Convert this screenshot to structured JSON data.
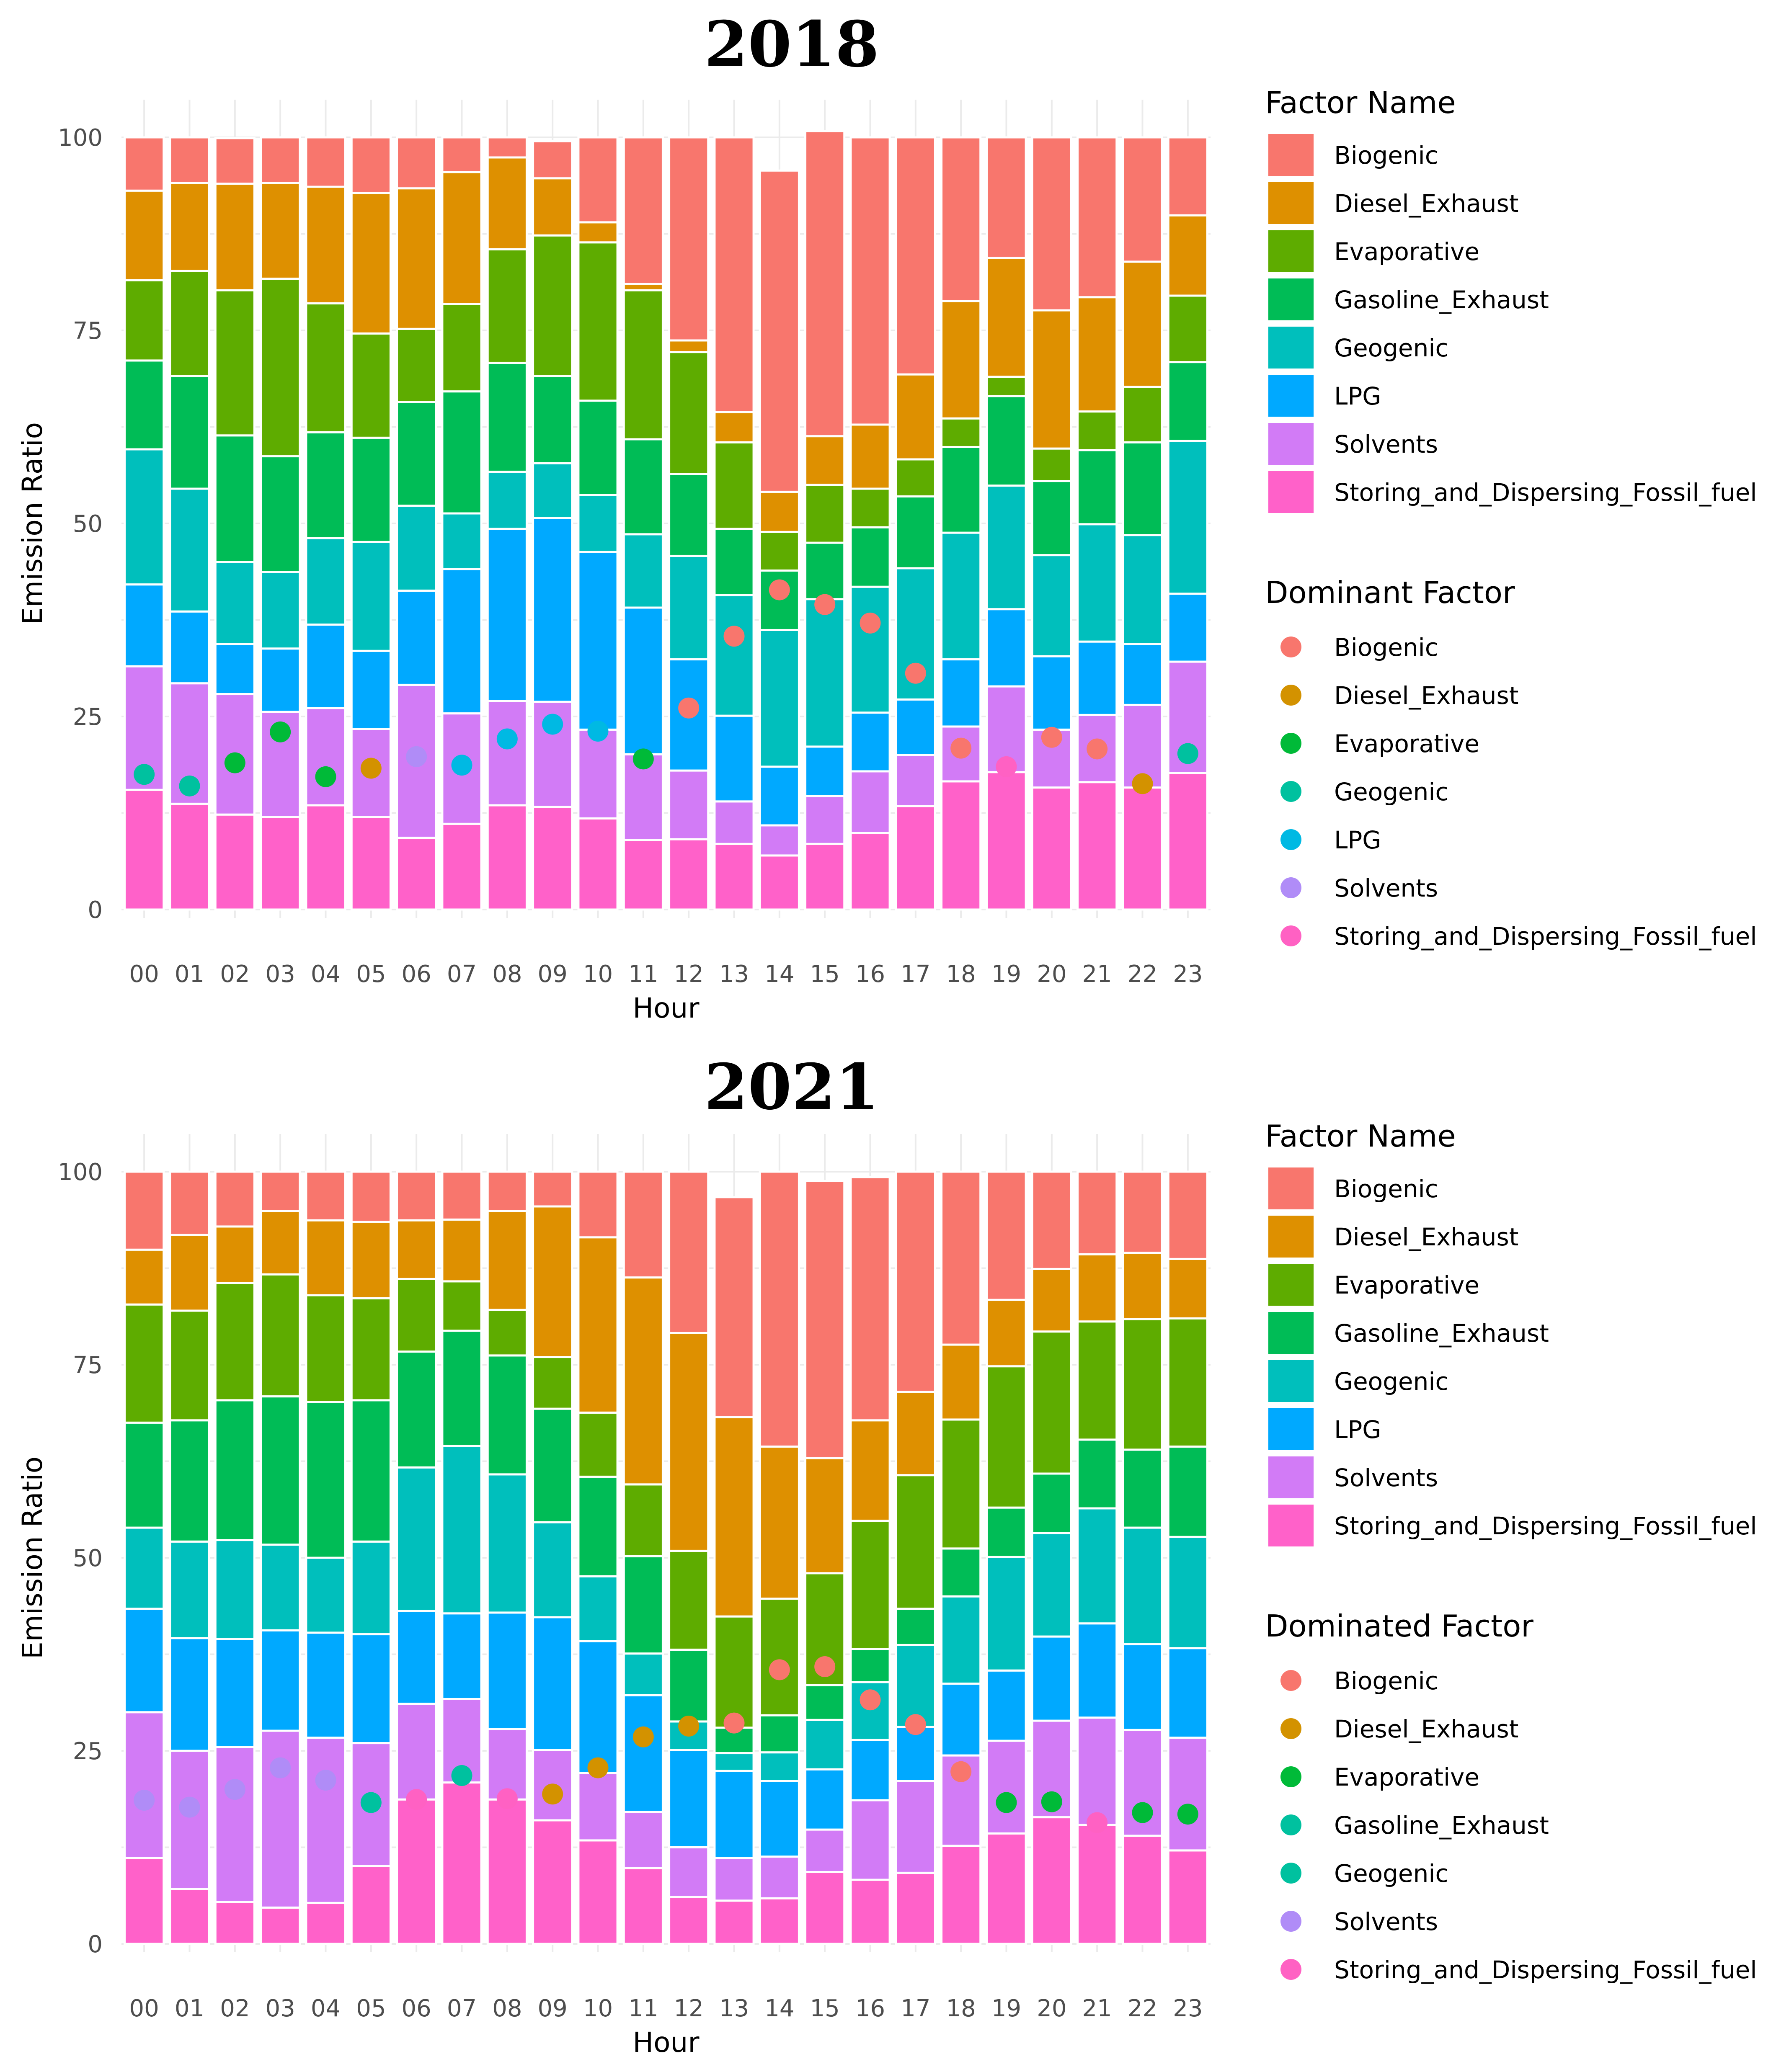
{
  "factor_colors": {
    "Biogenic": "#F8766D",
    "Diesel_Exhaust": "#DE9000",
    "Evaporative": "#5EAC00",
    "Gasoline_Exhaust": "#00BC56",
    "Geogenic": "#00BFBC",
    "LPG": "#00A9FF",
    "Solvents": "#D27BF6",
    "Storing_and_Dispersing_Fossil_fuel": "#FF61C9"
  },
  "dominant_colors": {
    "Biogenic": "#F8766D",
    "Diesel_Exhaust": "#D39200",
    "Evaporative": "#00BA38",
    "Geogenic": "#00C19F",
    "Gasoline_Exhaust": "#00C19F",
    "LPG": "#00B9E3",
    "Solvents": "#B08CF7",
    "Storing_and_Dispersing_Fossil_fuel": "#FF61C3"
  },
  "chart_data": [
    {
      "type": "bar",
      "stacked": true,
      "title": "2018",
      "xlabel": "Hour",
      "ylabel": "Emission Ratio",
      "ylim": [
        0,
        100
      ],
      "yticks": [
        0,
        25,
        50,
        75,
        100
      ],
      "categories": [
        "00",
        "01",
        "02",
        "03",
        "04",
        "05",
        "06",
        "07",
        "08",
        "09",
        "10",
        "11",
        "12",
        "13",
        "14",
        "15",
        "16",
        "17",
        "18",
        "19",
        "20",
        "21",
        "22",
        "23"
      ],
      "stack_order_bottom_to_top": [
        "Storing_and_Dispersing_Fossil_fuel",
        "Solvents",
        "LPG",
        "Geogenic",
        "Gasoline_Exhaust",
        "Evaporative",
        "Diesel_Exhaust",
        "Biogenic"
      ],
      "legend_fill_title": "Factor Name",
      "legend_fill": [
        "Biogenic",
        "Diesel_Exhaust",
        "Evaporative",
        "Gasoline_Exhaust",
        "Geogenic",
        "LPG",
        "Solvents",
        "Storing_and_Dispersing_Fossil_fuel"
      ],
      "legend_point_title": "Dominant Factor",
      "legend_point": [
        "Biogenic",
        "Diesel_Exhaust",
        "Evaporative",
        "Geogenic",
        "LPG",
        "Solvents",
        "Storing_and_Dispersing_Fossil_fuel"
      ],
      "series": [
        {
          "name": "Storing_and_Dispersing_Fossil_fuel",
          "values": [
            15.5,
            13.7,
            12.3,
            12.0,
            13.5,
            12.0,
            9.3,
            11.1,
            13.5,
            13.3,
            11.8,
            9.0,
            9.1,
            8.5,
            7.0,
            8.5,
            9.9,
            13.4,
            16.6,
            17.8,
            15.8,
            16.5,
            15.8,
            17.7
          ]
        },
        {
          "name": "Solvents",
          "values": [
            16.0,
            15.6,
            15.6,
            13.6,
            12.6,
            11.4,
            19.8,
            14.3,
            13.5,
            13.6,
            11.5,
            11.1,
            8.9,
            5.5,
            3.9,
            6.2,
            8.0,
            6.6,
            7.1,
            11.1,
            7.5,
            8.7,
            10.7,
            14.4
          ]
        },
        {
          "name": "LPG",
          "values": [
            10.6,
            9.3,
            6.5,
            8.2,
            10.8,
            10.1,
            12.2,
            18.7,
            22.3,
            23.8,
            23.0,
            19.0,
            14.4,
            11.1,
            7.6,
            6.4,
            7.6,
            7.2,
            8.7,
            10.0,
            9.5,
            9.5,
            7.9,
            8.8
          ]
        },
        {
          "name": "Geogenic",
          "values": [
            17.5,
            15.9,
            10.6,
            9.9,
            11.2,
            14.1,
            11.0,
            7.2,
            7.4,
            7.1,
            7.4,
            9.5,
            13.4,
            15.6,
            17.7,
            19.1,
            16.3,
            17.0,
            16.4,
            16.0,
            13.1,
            15.2,
            14.1,
            19.8
          ]
        },
        {
          "name": "Gasoline_Exhaust",
          "values": [
            11.5,
            14.6,
            16.4,
            15.0,
            13.7,
            13.5,
            13.4,
            15.8,
            14.1,
            11.3,
            12.2,
            12.3,
            10.6,
            8.6,
            7.7,
            7.3,
            7.7,
            9.3,
            11.1,
            11.6,
            9.6,
            9.6,
            12.0,
            10.2
          ]
        },
        {
          "name": "Evaporative",
          "values": [
            10.4,
            13.6,
            18.8,
            23.0,
            16.7,
            13.5,
            9.5,
            11.3,
            14.7,
            18.2,
            20.5,
            19.3,
            15.8,
            11.2,
            5.0,
            7.5,
            5.0,
            4.8,
            3.7,
            2.5,
            4.2,
            5.0,
            7.2,
            8.6
          ]
        },
        {
          "name": "Diesel_Exhaust",
          "values": [
            11.6,
            11.4,
            13.8,
            12.4,
            15.1,
            18.2,
            18.2,
            17.1,
            11.9,
            7.4,
            2.6,
            0.8,
            1.5,
            3.9,
            5.2,
            6.3,
            8.3,
            11.0,
            15.2,
            15.4,
            17.9,
            14.8,
            16.2,
            10.4
          ]
        },
        {
          "name": "Biogenic",
          "values": [
            6.9,
            5.9,
            5.9,
            5.9,
            6.4,
            7.2,
            6.6,
            4.5,
            2.6,
            4.8,
            11.0,
            19.0,
            26.3,
            35.6,
            41.6,
            39.5,
            37.2,
            30.7,
            21.2,
            15.6,
            22.4,
            20.7,
            16.1,
            10.1
          ]
        }
      ],
      "dominant": [
        {
          "factor": "Geogenic",
          "value": 17.5
        },
        {
          "factor": "Geogenic",
          "value": 16.0
        },
        {
          "factor": "Evaporative",
          "value": 19.0
        },
        {
          "factor": "Evaporative",
          "value": 23.0
        },
        {
          "factor": "Evaporative",
          "value": 17.2
        },
        {
          "factor": "Diesel_Exhaust",
          "value": 18.3
        },
        {
          "factor": "Solvents",
          "value": 19.8
        },
        {
          "factor": "LPG",
          "value": 18.7
        },
        {
          "factor": "LPG",
          "value": 22.1
        },
        {
          "factor": "LPG",
          "value": 24.0
        },
        {
          "factor": "LPG",
          "value": 23.1
        },
        {
          "factor": "Evaporative",
          "value": 19.5
        },
        {
          "factor": "Biogenic",
          "value": 26.1
        },
        {
          "factor": "Biogenic",
          "value": 35.4
        },
        {
          "factor": "Biogenic",
          "value": 41.4
        },
        {
          "factor": "Biogenic",
          "value": 39.5
        },
        {
          "factor": "Biogenic",
          "value": 37.1
        },
        {
          "factor": "Biogenic",
          "value": 30.6
        },
        {
          "factor": "Biogenic",
          "value": 20.9
        },
        {
          "factor": "Storing_and_Dispersing_Fossil_fuel",
          "value": 18.5
        },
        {
          "factor": "Biogenic",
          "value": 22.3
        },
        {
          "factor": "Biogenic",
          "value": 20.8
        },
        {
          "factor": "Diesel_Exhaust",
          "value": 16.3
        },
        {
          "factor": "Geogenic",
          "value": 20.2
        }
      ]
    },
    {
      "type": "bar",
      "stacked": true,
      "title": "2021",
      "xlabel": "Hour",
      "ylabel": "Emission Ratio",
      "ylim": [
        0,
        100
      ],
      "yticks": [
        0,
        25,
        50,
        75,
        100
      ],
      "categories": [
        "00",
        "01",
        "02",
        "03",
        "04",
        "05",
        "06",
        "07",
        "08",
        "09",
        "10",
        "11",
        "12",
        "13",
        "14",
        "15",
        "16",
        "17",
        "18",
        "19",
        "20",
        "21",
        "22",
        "23"
      ],
      "stack_order_bottom_to_top": [
        "Storing_and_Dispersing_Fossil_fuel",
        "Solvents",
        "LPG",
        "Geogenic",
        "Gasoline_Exhaust",
        "Evaporative",
        "Diesel_Exhaust",
        "Biogenic"
      ],
      "legend_fill_title": "Factor Name",
      "legend_fill": [
        "Biogenic",
        "Diesel_Exhaust",
        "Evaporative",
        "Gasoline_Exhaust",
        "Geogenic",
        "LPG",
        "Solvents",
        "Storing_and_Dispersing_Fossil_fuel"
      ],
      "legend_point_title": "Dominated Factor",
      "legend_point": [
        "Biogenic",
        "Diesel_Exhaust",
        "Evaporative",
        "Gasoline_Exhaust",
        "Geogenic",
        "Solvents",
        "Storing_and_Dispersing_Fossil_fuel"
      ],
      "series": [
        {
          "name": "Storing_and_Dispersing_Fossil_fuel",
          "values": [
            11.1,
            7.1,
            5.4,
            4.7,
            5.3,
            10.1,
            18.7,
            20.9,
            18.7,
            16.0,
            13.4,
            9.8,
            6.1,
            5.6,
            5.9,
            9.3,
            8.3,
            9.2,
            12.7,
            14.3,
            16.4,
            15.4,
            14.0,
            12.1
          ]
        },
        {
          "name": "Solvents",
          "values": [
            18.9,
            17.9,
            20.1,
            22.9,
            21.4,
            15.9,
            12.4,
            10.8,
            9.1,
            9.1,
            8.7,
            7.3,
            6.4,
            5.5,
            5.4,
            5.5,
            10.3,
            11.9,
            11.7,
            12.0,
            12.5,
            13.9,
            13.7,
            14.6
          ]
        },
        {
          "name": "LPG",
          "values": [
            13.4,
            14.6,
            14.0,
            13.0,
            13.6,
            14.1,
            12.0,
            11.1,
            15.1,
            17.2,
            17.1,
            15.1,
            12.6,
            11.3,
            9.8,
            7.8,
            7.8,
            7.0,
            9.3,
            9.1,
            10.9,
            12.2,
            11.1,
            11.6
          ]
        },
        {
          "name": "Geogenic",
          "values": [
            10.5,
            12.5,
            12.8,
            11.1,
            9.7,
            12.0,
            18.6,
            21.7,
            17.9,
            12.3,
            8.4,
            5.4,
            3.7,
            2.3,
            3.7,
            6.4,
            7.5,
            10.6,
            11.3,
            14.7,
            13.4,
            14.9,
            15.1,
            14.4
          ]
        },
        {
          "name": "Gasoline_Exhaust",
          "values": [
            13.6,
            15.7,
            18.1,
            19.2,
            20.2,
            18.3,
            15.0,
            14.9,
            15.4,
            14.7,
            12.9,
            12.6,
            9.3,
            3.3,
            4.8,
            4.5,
            4.3,
            4.7,
            6.2,
            6.4,
            7.7,
            8.9,
            10.1,
            11.7
          ]
        },
        {
          "name": "Evaporative",
          "values": [
            15.3,
            14.2,
            15.2,
            15.8,
            13.8,
            13.2,
            9.4,
            6.4,
            5.9,
            6.7,
            8.3,
            9.3,
            12.8,
            14.4,
            15.1,
            14.5,
            16.6,
            17.3,
            16.7,
            18.3,
            18.4,
            15.3,
            16.9,
            16.6
          ]
        },
        {
          "name": "Diesel_Exhaust",
          "values": [
            7.1,
            9.8,
            7.3,
            8.2,
            9.7,
            9.9,
            7.6,
            8.0,
            12.8,
            19.5,
            22.7,
            26.8,
            28.2,
            25.8,
            19.7,
            14.9,
            13.0,
            10.8,
            9.7,
            8.6,
            8.1,
            8.7,
            8.6,
            7.7
          ]
        },
        {
          "name": "Biogenic",
          "values": [
            10.1,
            8.2,
            7.1,
            5.1,
            6.3,
            6.5,
            6.3,
            6.2,
            5.1,
            4.5,
            8.5,
            13.7,
            20.9,
            28.5,
            35.6,
            35.9,
            31.5,
            28.5,
            22.4,
            16.6,
            12.6,
            10.7,
            10.5,
            11.3
          ]
        }
      ],
      "dominant": [
        {
          "factor": "Solvents",
          "value": 18.6
        },
        {
          "factor": "Solvents",
          "value": 17.7
        },
        {
          "factor": "Solvents",
          "value": 20.0
        },
        {
          "factor": "Solvents",
          "value": 22.8
        },
        {
          "factor": "Solvents",
          "value": 21.2
        },
        {
          "factor": "Gasoline_Exhaust",
          "value": 18.3
        },
        {
          "factor": "Storing_and_Dispersing_Fossil_fuel",
          "value": 18.7
        },
        {
          "factor": "Geogenic",
          "value": 21.8
        },
        {
          "factor": "Storing_and_Dispersing_Fossil_fuel",
          "value": 18.8
        },
        {
          "factor": "Diesel_Exhaust",
          "value": 19.4
        },
        {
          "factor": "Diesel_Exhaust",
          "value": 22.8
        },
        {
          "factor": "Diesel_Exhaust",
          "value": 26.8
        },
        {
          "factor": "Diesel_Exhaust",
          "value": 28.2
        },
        {
          "factor": "Biogenic",
          "value": 28.6
        },
        {
          "factor": "Biogenic",
          "value": 35.5
        },
        {
          "factor": "Biogenic",
          "value": 35.9
        },
        {
          "factor": "Biogenic",
          "value": 31.6
        },
        {
          "factor": "Biogenic",
          "value": 28.4
        },
        {
          "factor": "Biogenic",
          "value": 22.3
        },
        {
          "factor": "Evaporative",
          "value": 18.3
        },
        {
          "factor": "Evaporative",
          "value": 18.4
        },
        {
          "factor": "Storing_and_Dispersing_Fossil_fuel",
          "value": 15.7
        },
        {
          "factor": "Evaporative",
          "value": 17.0
        },
        {
          "factor": "Evaporative",
          "value": 16.8
        }
      ]
    }
  ]
}
